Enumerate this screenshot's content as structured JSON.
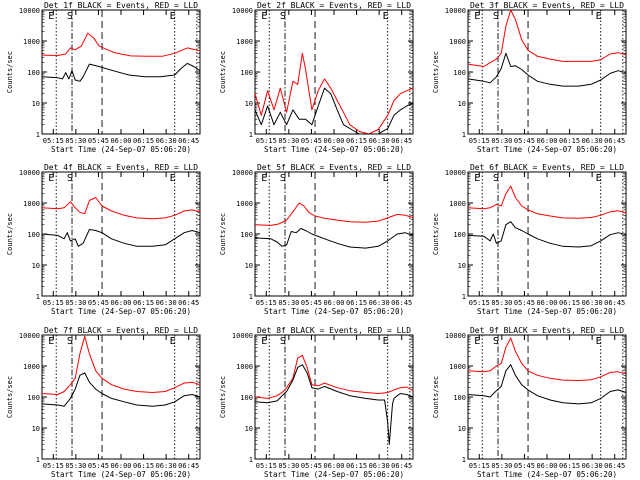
{
  "start_time_label": "Start Time (24-Sep-07 05:06:20)",
  "title_suffix": "BLACK = Events, RED = LLD",
  "ylabel": "Counts/sec",
  "x_ticks": [
    "05:15",
    "05:30",
    "05:45",
    "06:00",
    "06:15",
    "06:30",
    "06:45"
  ],
  "y_ticks": [
    "1",
    "10",
    "100",
    "1000",
    "10000"
  ],
  "marker_labels": {
    "eclipse_start": "E",
    "saa": "S",
    "eclipse_end": "E"
  },
  "colors": {
    "events": "#000000",
    "lld": "#ff0000",
    "axes": "#000000"
  },
  "chart_data": [
    {
      "type": "line",
      "title": "Det 1f",
      "xlabel": "Start Time (24-Sep-07 05:06:20)",
      "ylabel": "Counts/sec",
      "xlim_min": [
        0,
        100
      ],
      "ylim_log": [
        1,
        10000
      ],
      "markers_min": {
        "eclipse_start": 9,
        "saa": 19,
        "saa_exit": 38,
        "eclipse_end": 84,
        "eclipse_end2": 98
      },
      "series": [
        {
          "name": "LLD",
          "color": "#ff0000",
          "x": [
            0,
            10,
            15,
            18,
            21,
            25,
            29,
            33,
            36,
            40,
            46,
            56,
            66,
            76,
            84,
            92,
            100
          ],
          "y": [
            350,
            340,
            380,
            600,
            520,
            700,
            1800,
            1200,
            700,
            560,
            420,
            330,
            320,
            320,
            400,
            600,
            480
          ]
        },
        {
          "name": "Events",
          "color": "#000000",
          "x": [
            0,
            10,
            13,
            15,
            17,
            19,
            21,
            24,
            26,
            30,
            36,
            45,
            55,
            65,
            75,
            84,
            88,
            92,
            96,
            100
          ],
          "y": [
            70,
            65,
            60,
            95,
            60,
            110,
            55,
            50,
            70,
            180,
            150,
            110,
            80,
            70,
            70,
            80,
            130,
            190,
            150,
            110
          ]
        }
      ]
    },
    {
      "type": "line",
      "title": "Det 2f",
      "xlabel": "Start Time (24-Sep-07 05:06:20)",
      "ylabel": "Counts/sec",
      "xlim_min": [
        0,
        100
      ],
      "ylim_log": [
        1,
        10000
      ],
      "markers_min": {
        "eclipse_start": 9,
        "saa": 19,
        "saa_exit": 38,
        "eclipse_end": 84,
        "eclipse_end2": 98
      },
      "series": [
        {
          "name": "LLD",
          "color": "#ff0000",
          "x": [
            0,
            4,
            8,
            12,
            16,
            20,
            24,
            27,
            30,
            32,
            36,
            40,
            44,
            48,
            52,
            56,
            60,
            66,
            72,
            78,
            84,
            88,
            92,
            96,
            100
          ],
          "y": [
            20,
            4,
            25,
            6,
            30,
            5,
            50,
            40,
            400,
            120,
            6,
            25,
            60,
            30,
            12,
            5,
            2,
            1.2,
            1,
            1.4,
            4,
            12,
            20,
            25,
            30
          ]
        },
        {
          "name": "Events",
          "color": "#000000",
          "x": [
            0,
            4,
            8,
            12,
            16,
            20,
            24,
            28,
            32,
            36,
            40,
            44,
            48,
            52,
            56,
            60,
            66,
            72,
            78,
            84,
            88,
            92,
            96,
            100
          ],
          "y": [
            6,
            2,
            8,
            2,
            5,
            2,
            6,
            3,
            3,
            2,
            8,
            30,
            20,
            6,
            2,
            1.5,
            1,
            1,
            1,
            1.5,
            4,
            6,
            8,
            10
          ]
        }
      ]
    },
    {
      "type": "line",
      "title": "Det 3f",
      "xlabel": "Start Time (24-Sep-07 05:06:20)",
      "ylabel": "Counts/sec",
      "xlim_min": [
        0,
        100
      ],
      "ylim_log": [
        1,
        10000
      ],
      "markers_min": {
        "eclipse_start": 9,
        "saa": 19,
        "saa_exit": 38,
        "eclipse_end": 84,
        "eclipse_end2": 98
      },
      "series": [
        {
          "name": "LLD",
          "color": "#ff0000",
          "x": [
            0,
            10,
            14,
            18,
            21,
            24,
            27,
            30,
            34,
            38,
            44,
            52,
            60,
            70,
            78,
            84,
            90,
            95,
            100
          ],
          "y": [
            180,
            150,
            200,
            260,
            400,
            3000,
            10000,
            5000,
            1100,
            500,
            320,
            260,
            220,
            220,
            220,
            250,
            380,
            420,
            360
          ]
        },
        {
          "name": "Events",
          "color": "#000000",
          "x": [
            0,
            10,
            14,
            18,
            21,
            24,
            27,
            30,
            34,
            38,
            44,
            52,
            60,
            70,
            78,
            84,
            90,
            95,
            100
          ],
          "y": [
            60,
            50,
            45,
            70,
            130,
            400,
            150,
            160,
            120,
            80,
            50,
            40,
            35,
            35,
            40,
            55,
            90,
            110,
            95
          ]
        }
      ]
    },
    {
      "type": "line",
      "title": "Det 4f",
      "xlabel": "Start Time (24-Sep-07 05:06:20)",
      "ylabel": "Counts/sec",
      "xlim_min": [
        0,
        100
      ],
      "ylim_log": [
        1,
        10000
      ],
      "markers_min": {
        "eclipse_start": 9,
        "saa": 19,
        "saa_exit": 38,
        "eclipse_end": 84,
        "eclipse_end2": 98
      },
      "series": [
        {
          "name": "LLD",
          "color": "#ff0000",
          "x": [
            0,
            10,
            14,
            18,
            21,
            24,
            27,
            30,
            34,
            38,
            44,
            52,
            60,
            70,
            78,
            84,
            90,
            95,
            100
          ],
          "y": [
            700,
            650,
            700,
            1100,
            700,
            500,
            450,
            1200,
            1500,
            800,
            550,
            400,
            330,
            310,
            330,
            400,
            550,
            600,
            520
          ]
        },
        {
          "name": "Events",
          "color": "#000000",
          "x": [
            0,
            10,
            14,
            16,
            18,
            21,
            23,
            26,
            30,
            34,
            38,
            44,
            52,
            60,
            70,
            78,
            84,
            90,
            95,
            100
          ],
          "y": [
            100,
            90,
            70,
            110,
            60,
            70,
            40,
            50,
            140,
            130,
            110,
            70,
            50,
            40,
            40,
            45,
            70,
            110,
            130,
            110
          ]
        }
      ]
    },
    {
      "type": "line",
      "title": "Det 5f",
      "xlabel": "Start Time (24-Sep-07 05:06:20)",
      "ylabel": "Counts/sec",
      "xlim_min": [
        0,
        100
      ],
      "ylim_log": [
        1,
        10000
      ],
      "markers_min": {
        "eclipse_start": 9,
        "saa": 19,
        "saa_exit": 38,
        "eclipse_end": 84,
        "eclipse_end2": 98
      },
      "series": [
        {
          "name": "LLD",
          "color": "#ff0000",
          "x": [
            0,
            10,
            15,
            20,
            24,
            28,
            31,
            34,
            38,
            44,
            52,
            60,
            70,
            78,
            84,
            90,
            95,
            100
          ],
          "y": [
            200,
            190,
            210,
            280,
            520,
            1000,
            800,
            500,
            380,
            320,
            280,
            250,
            240,
            260,
            330,
            430,
            400,
            340
          ]
        },
        {
          "name": "Events",
          "color": "#000000",
          "x": [
            0,
            10,
            14,
            17,
            20,
            23,
            26,
            29,
            32,
            36,
            44,
            52,
            60,
            70,
            78,
            84,
            90,
            95,
            100
          ],
          "y": [
            75,
            70,
            55,
            40,
            45,
            120,
            110,
            150,
            130,
            100,
            70,
            50,
            38,
            35,
            40,
            60,
            100,
            110,
            90
          ]
        }
      ]
    },
    {
      "type": "line",
      "title": "Det 6f",
      "xlabel": "Start Time (24-Sep-07 05:06:20)",
      "ylabel": "Counts/sec",
      "xlim_min": [
        0,
        100
      ],
      "ylim_log": [
        1,
        10000
      ],
      "markers_min": {
        "eclipse_start": 9,
        "saa": 19,
        "saa_exit": 38,
        "eclipse_end": 84,
        "eclipse_end2": 98
      },
      "series": [
        {
          "name": "LLD",
          "color": "#ff0000",
          "x": [
            0,
            10,
            14,
            18,
            21,
            24,
            27,
            30,
            34,
            38,
            44,
            52,
            60,
            70,
            78,
            84,
            90,
            95,
            100
          ],
          "y": [
            700,
            650,
            700,
            900,
            800,
            2000,
            3500,
            1500,
            800,
            600,
            450,
            380,
            330,
            320,
            340,
            400,
            520,
            560,
            480
          ]
        },
        {
          "name": "Events",
          "color": "#000000",
          "x": [
            0,
            10,
            14,
            16,
            18,
            21,
            24,
            27,
            30,
            34,
            38,
            44,
            52,
            60,
            70,
            78,
            84,
            90,
            95,
            100
          ],
          "y": [
            90,
            85,
            60,
            100,
            50,
            60,
            200,
            250,
            160,
            130,
            100,
            70,
            50,
            40,
            38,
            42,
            60,
            95,
            110,
            95
          ]
        }
      ]
    },
    {
      "type": "line",
      "title": "Det 7f",
      "xlabel": "Start Time (24-Sep-07 05:06:20)",
      "ylabel": "Counts/sec",
      "xlim_min": [
        0,
        100
      ],
      "ylim_log": [
        1,
        10000
      ],
      "markers_min": {
        "eclipse_start": 9,
        "saa": 19,
        "saa_exit": 38,
        "eclipse_end": 84,
        "eclipse_end2": 98
      },
      "series": [
        {
          "name": "LLD",
          "color": "#ff0000",
          "x": [
            0,
            10,
            14,
            18,
            21,
            24,
            27,
            30,
            34,
            38,
            44,
            52,
            60,
            70,
            78,
            84,
            90,
            95,
            100
          ],
          "y": [
            130,
            120,
            150,
            250,
            400,
            2500,
            9000,
            2500,
            700,
            400,
            250,
            180,
            150,
            140,
            150,
            200,
            280,
            300,
            250
          ]
        },
        {
          "name": "Events",
          "color": "#000000",
          "x": [
            0,
            10,
            14,
            18,
            21,
            24,
            27,
            30,
            34,
            38,
            44,
            52,
            60,
            70,
            78,
            84,
            90,
            95,
            100
          ],
          "y": [
            60,
            55,
            50,
            90,
            180,
            500,
            600,
            300,
            180,
            130,
            90,
            70,
            55,
            50,
            55,
            70,
            110,
            120,
            100
          ]
        }
      ]
    },
    {
      "type": "line",
      "title": "Det 8f",
      "xlabel": "Start Time (24-Sep-07 05:06:20)",
      "ylabel": "Counts/sec",
      "xlim_min": [
        0,
        100
      ],
      "ylim_log": [
        1,
        10000
      ],
      "markers_min": {
        "eclipse_start": 9,
        "saa": 19,
        "saa_exit": 38,
        "eclipse_end": 84,
        "eclipse_end2": 98
      },
      "series": [
        {
          "name": "LLD",
          "color": "#ff0000",
          "x": [
            0,
            8,
            14,
            18,
            20,
            24,
            27,
            30,
            33,
            36,
            40,
            44,
            52,
            60,
            70,
            78,
            84,
            88,
            92,
            96,
            100
          ],
          "y": [
            100,
            90,
            110,
            150,
            200,
            400,
            1800,
            2200,
            900,
            250,
            230,
            280,
            200,
            160,
            140,
            130,
            140,
            170,
            200,
            210,
            160
          ]
        },
        {
          "name": "Events",
          "color": "#000000",
          "x": [
            0,
            8,
            14,
            18,
            20,
            24,
            27,
            30,
            33,
            36,
            40,
            44,
            52,
            60,
            70,
            78,
            82,
            84,
            85,
            87,
            88,
            90,
            92,
            96,
            100
          ],
          "y": [
            70,
            65,
            75,
            120,
            150,
            350,
            900,
            1100,
            600,
            200,
            180,
            220,
            150,
            110,
            90,
            80,
            80,
            15,
            3,
            60,
            90,
            110,
            130,
            120,
            100
          ]
        }
      ]
    },
    {
      "type": "line",
      "title": "Det 9f",
      "xlabel": "Start Time (24-Sep-07 05:06:20)",
      "ylabel": "Counts/sec",
      "xlim_min": [
        0,
        100
      ],
      "ylim_log": [
        1,
        10000
      ],
      "markers_min": {
        "eclipse_start": 9,
        "saa": 19,
        "saa_exit": 38,
        "eclipse_end": 84,
        "eclipse_end2": 98
      },
      "series": [
        {
          "name": "LLD",
          "color": "#ff0000",
          "x": [
            0,
            10,
            14,
            18,
            21,
            24,
            27,
            30,
            34,
            38,
            44,
            52,
            60,
            70,
            78,
            84,
            90,
            95,
            100
          ],
          "y": [
            700,
            650,
            700,
            1000,
            1200,
            4000,
            8000,
            3000,
            1200,
            700,
            500,
            400,
            350,
            340,
            360,
            450,
            620,
            650,
            560
          ]
        },
        {
          "name": "Events",
          "color": "#000000",
          "x": [
            0,
            10,
            14,
            18,
            21,
            24,
            27,
            30,
            34,
            38,
            44,
            52,
            60,
            70,
            78,
            84,
            90,
            95,
            100
          ],
          "y": [
            120,
            110,
            100,
            160,
            220,
            700,
            1100,
            500,
            250,
            170,
            110,
            80,
            65,
            60,
            65,
            90,
            150,
            170,
            140
          ]
        }
      ]
    }
  ]
}
